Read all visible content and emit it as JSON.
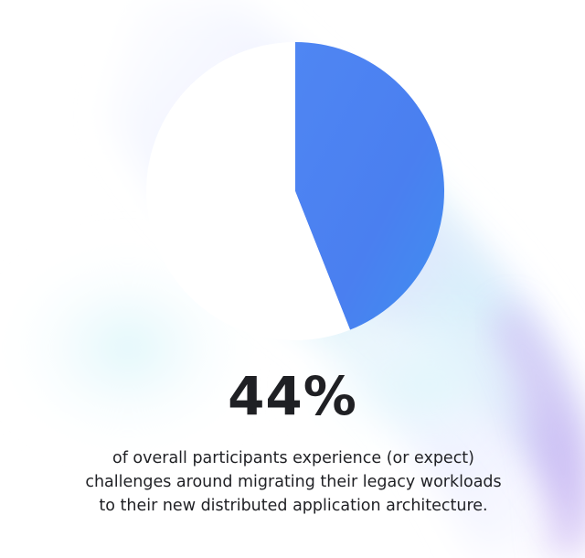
{
  "chart_data": {
    "type": "pie",
    "values": [
      44,
      56
    ],
    "colors": [
      "#4a7ff0",
      "#ffffff"
    ],
    "title": "",
    "value_label": "44%",
    "caption": [
      "of overall participants experience (or expect)",
      "challenges around migrating their legacy workloads",
      "to their new distributed application architecture."
    ]
  }
}
